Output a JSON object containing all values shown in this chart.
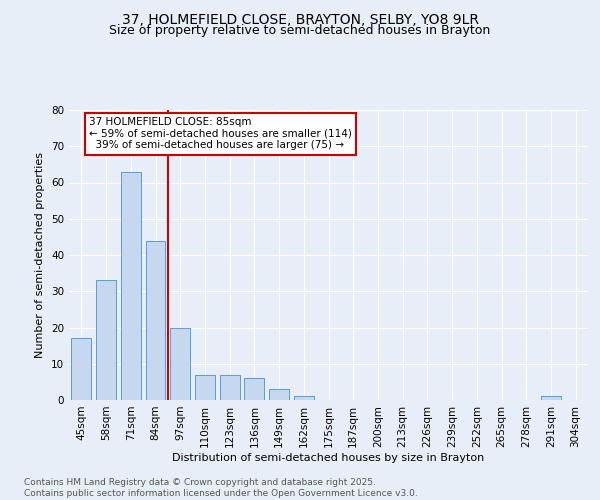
{
  "title_line1": "37, HOLMEFIELD CLOSE, BRAYTON, SELBY, YO8 9LR",
  "title_line2": "Size of property relative to semi-detached houses in Brayton",
  "xlabel": "Distribution of semi-detached houses by size in Brayton",
  "ylabel": "Number of semi-detached properties",
  "categories": [
    "45sqm",
    "58sqm",
    "71sqm",
    "84sqm",
    "97sqm",
    "110sqm",
    "123sqm",
    "136sqm",
    "149sqm",
    "162sqm",
    "175sqm",
    "187sqm",
    "200sqm",
    "213sqm",
    "226sqm",
    "239sqm",
    "252sqm",
    "265sqm",
    "278sqm",
    "291sqm",
    "304sqm"
  ],
  "values": [
    17,
    33,
    63,
    44,
    20,
    7,
    7,
    6,
    3,
    1,
    0,
    0,
    0,
    0,
    0,
    0,
    0,
    0,
    0,
    1,
    0
  ],
  "bar_color": "#c5d8f0",
  "bar_edge_color": "#5b9bd5",
  "vline_color": "#cc0000",
  "annotation_text": "37 HOLMEFIELD CLOSE: 85sqm\n← 59% of semi-detached houses are smaller (114)\n  39% of semi-detached houses are larger (75) →",
  "annotation_box_color": "#ffffff",
  "annotation_box_edge_color": "#cc0000",
  "ylim": [
    0,
    80
  ],
  "yticks": [
    0,
    10,
    20,
    30,
    40,
    50,
    60,
    70,
    80
  ],
  "background_color": "#e8eef7",
  "plot_background_color": "#e8eef7",
  "footer_text": "Contains HM Land Registry data © Crown copyright and database right 2025.\nContains public sector information licensed under the Open Government Licence v3.0.",
  "title_fontsize": 10,
  "subtitle_fontsize": 9,
  "axis_label_fontsize": 8,
  "tick_fontsize": 7.5,
  "annotation_fontsize": 7.5,
  "footer_fontsize": 6.5
}
